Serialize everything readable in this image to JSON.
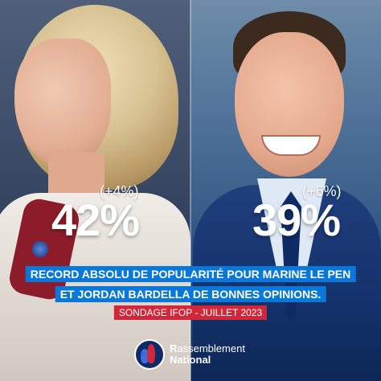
{
  "left": {
    "change": "(+4%)",
    "percent": "42%"
  },
  "right": {
    "change": "(+6%)",
    "percent": "39%"
  },
  "headline": {
    "line1": "RECORD ABSOLU DE POPULARITÉ POUR MARINE LE PEN",
    "line2": "ET JORDAN BARDELLA DE BONNES OPINIONS."
  },
  "source": "SONDAGE IFOP - JUILLET 2023",
  "brand": {
    "line1_initial": "R",
    "line1_rest": "assemblement",
    "line2": "National"
  },
  "colors": {
    "navy": "#0f2b66",
    "blue_banner": "#0a78d8",
    "red_tag": "#d0283a",
    "text": "#ffffff"
  }
}
